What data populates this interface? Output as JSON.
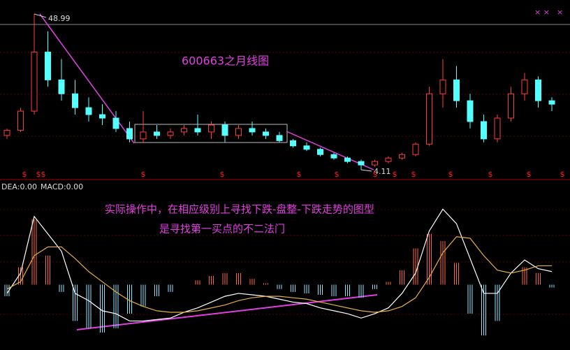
{
  "chart_data": [
    {
      "type": "candlestick",
      "title": "600663之月线图",
      "ylim": [
        1.3,
        53
      ],
      "up_color": "#ff3c3c",
      "down_color": "#54ffff",
      "open": [
        14,
        15.5,
        21,
        38,
        30,
        26,
        22,
        20,
        19,
        16,
        13,
        15,
        14,
        15,
        16,
        15,
        17,
        14,
        16,
        15,
        14,
        12.5,
        11,
        10,
        8.5,
        7.5,
        6.5,
        5.5,
        6.5,
        7.5,
        8.5,
        11.5,
        26,
        30,
        24,
        18,
        13,
        19,
        26,
        30,
        24
      ],
      "high": [
        16,
        22,
        48.99,
        44,
        36,
        30,
        25,
        23,
        21,
        18,
        21,
        17,
        16,
        17,
        20,
        18,
        18,
        17,
        18,
        16,
        15,
        13,
        12,
        10.5,
        9,
        8,
        7,
        7,
        8,
        9,
        12,
        28,
        36,
        34,
        26,
        20,
        20,
        28,
        32,
        31,
        25
      ],
      "low": [
        13,
        15,
        20,
        28,
        24,
        20,
        18,
        17,
        15,
        12,
        12,
        13,
        13,
        14,
        14,
        13,
        12,
        13,
        14,
        13,
        12,
        10.5,
        9.5,
        8,
        7,
        6,
        4.11,
        5,
        6,
        7,
        8,
        11,
        22,
        22,
        16,
        12,
        12,
        18,
        24,
        22,
        21
      ],
      "close": [
        15.5,
        21,
        38,
        30,
        26,
        22,
        20,
        19,
        16,
        13,
        15,
        14,
        15,
        16,
        15,
        17,
        14,
        16,
        15,
        14,
        12.5,
        11,
        10,
        8.5,
        7.5,
        6.5,
        5.5,
        6.5,
        7.5,
        8.5,
        11.5,
        26,
        30,
        24,
        18,
        13,
        19,
        26,
        30,
        24,
        23
      ],
      "marker_text": "$",
      "top_icons": [
        "× ×",
        "×"
      ]
    },
    {
      "type": "macd",
      "legend_text": [
        "DEA:0.00",
        "MACD:0.00"
      ],
      "ylim": [
        -4.5,
        7
      ],
      "annotations": [
        "实际操作中，在相应级别上寻找下跌-盘整-下跌走势的图型",
        "是寻找第一买点的不二法门"
      ],
      "histogram": {
        "up_color": "#ff6a3c",
        "down_color": "#8ee8ff",
        "values": [
          -0.8,
          1.2,
          4.5,
          2.0,
          -0.5,
          -2.5,
          -3.0,
          -3.3,
          -3.0,
          -2.0,
          -1.5,
          -0.8,
          -0.5,
          0.0,
          0.3,
          0.6,
          0.8,
          0.8,
          0.4,
          0.1,
          -0.3,
          -0.5,
          -0.6,
          -0.7,
          -0.8,
          -0.8,
          -0.9,
          -0.3,
          0.2,
          1.0,
          2.5,
          3.5,
          3.0,
          1.5,
          -2.0,
          -3.5,
          -2.5,
          0.0,
          1.2,
          0.8,
          -0.2
        ]
      },
      "series": [
        {
          "color": "#ffffff",
          "values": [
            -0.6,
            0.8,
            4.7,
            3.5,
            2.3,
            -0.6,
            -1.1,
            -1.8,
            -2.0,
            -2.5,
            -2.5,
            -2.4,
            -2.3,
            -1.9,
            -1.6,
            -1.2,
            -0.8,
            -0.6,
            -0.7,
            -0.8,
            -1.0,
            -1.2,
            -1.3,
            -1.6,
            -1.8,
            -2.0,
            -2.3,
            -2.0,
            -1.6,
            -0.6,
            0.8,
            3.7,
            5.2,
            4.2,
            1.8,
            -0.6,
            -0.6,
            0.8,
            1.7,
            1.1,
            0.9
          ]
        },
        {
          "color": "#e8b040",
          "values": [
            -0.3,
            0.2,
            2.0,
            2.6,
            2.6,
            1.8,
            0.9,
            0.2,
            -0.5,
            -1.1,
            -1.5,
            -1.8,
            -1.9,
            -1.9,
            -1.8,
            -1.6,
            -1.4,
            -1.1,
            -0.9,
            -0.8,
            -0.8,
            -0.9,
            -1.0,
            -1.2,
            -1.4,
            -1.6,
            -1.8,
            -1.9,
            -1.8,
            -1.5,
            -0.9,
            0.5,
            2.2,
            3.3,
            3.2,
            2.0,
            1.0,
            0.8,
            1.0,
            1.3,
            1.3
          ]
        }
      ]
    }
  ]
}
